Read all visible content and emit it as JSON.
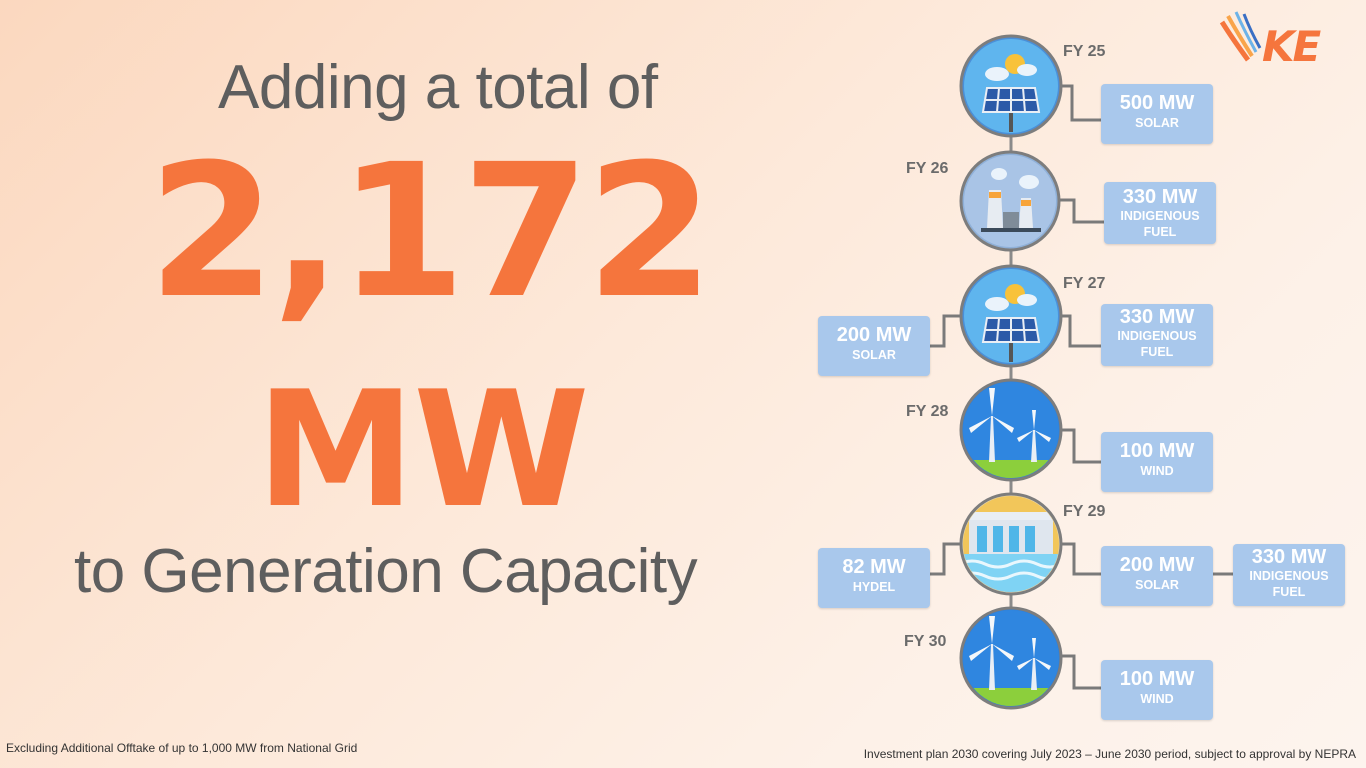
{
  "headline": {
    "line1": "Adding a total of",
    "number": "2,172",
    "unit": "MW",
    "line3": "to Generation Capacity"
  },
  "footnotes": {
    "left": "Excluding Additional Offtake of up to 1,000 MW from National Grid",
    "right": "Investment plan 2030 covering July 2023 – June 2030 period, subject to approval by NEPRA"
  },
  "logo": {
    "text": "KE"
  },
  "timeline": {
    "years": [
      {
        "label": "FY 25",
        "icon": "solar-panel-icon",
        "left": [],
        "right": [
          {
            "mw": "500 MW",
            "type": "SOLAR"
          }
        ]
      },
      {
        "label": "FY 26",
        "icon": "power-plant-icon",
        "left": [],
        "right": [
          {
            "mw": "330 MW",
            "type": "INDIGENOUS FUEL"
          }
        ]
      },
      {
        "label": "FY 27",
        "icon": "solar-panel-icon",
        "left": [
          {
            "mw": "200 MW",
            "type": "SOLAR"
          }
        ],
        "right": [
          {
            "mw": "330 MW",
            "type": "INDIGENOUS FUEL"
          }
        ]
      },
      {
        "label": "FY 28",
        "icon": "wind-turbine-icon",
        "left": [],
        "right": [
          {
            "mw": "100 MW",
            "type": "WIND"
          }
        ]
      },
      {
        "label": "FY 29",
        "icon": "hydro-dam-icon",
        "left": [
          {
            "mw": "82 MW",
            "type": "HYDEL"
          }
        ],
        "right": [
          {
            "mw": "200 MW",
            "type": "SOLAR"
          },
          {
            "mw": "330 MW",
            "type": "INDIGENOUS FUEL"
          }
        ]
      },
      {
        "label": "FY 30",
        "icon": "wind-turbine-icon",
        "left": [],
        "right": [
          {
            "mw": "100 MW",
            "type": "WIND"
          }
        ]
      }
    ]
  }
}
